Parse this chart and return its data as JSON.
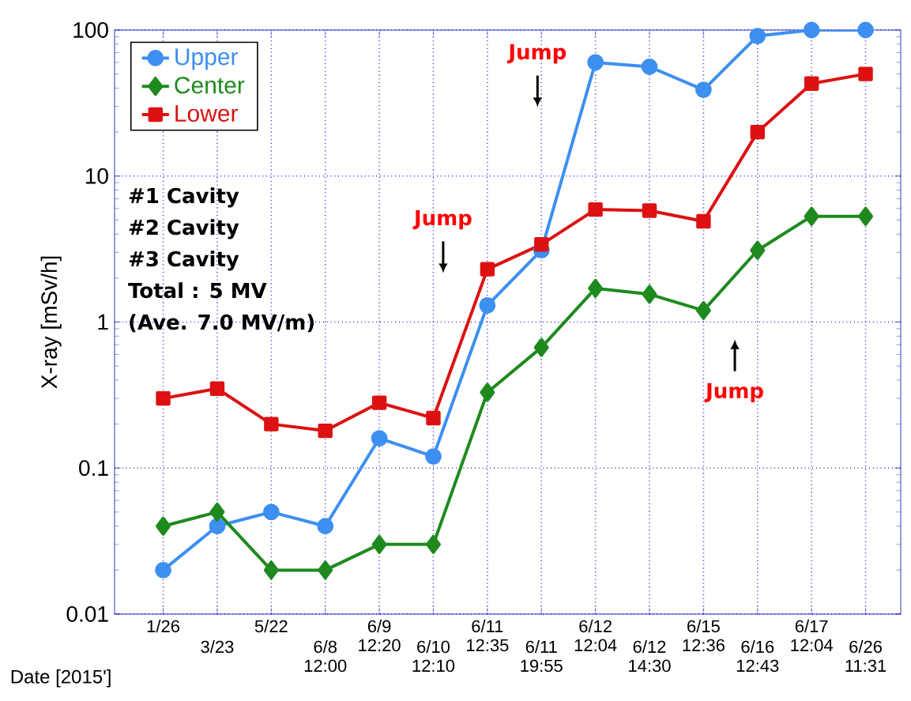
{
  "chart_data": {
    "type": "line",
    "xlabel": "Date [2015']",
    "ylabel": "X-ray  [mSv/h]",
    "categories": [
      "1/26",
      "3/23",
      "5/22",
      "6/8 12:00",
      "6/9 12:20",
      "6/10 12:10",
      "6/11 12:35",
      "6/11 19:55",
      "6/12 12:04",
      "6/12 14:30",
      "6/15 12:36",
      "6/16 12:43",
      "6/17 12:04",
      "6/26 11:31"
    ],
    "series": [
      {
        "name": "Upper",
        "color": "#3d8ff0",
        "marker": "circle",
        "values": [
          0.02,
          0.04,
          0.05,
          0.04,
          0.16,
          0.12,
          1.3,
          3.1,
          60,
          56,
          39,
          91,
          100,
          100
        ]
      },
      {
        "name": "Center",
        "color": "#1e8a1e",
        "marker": "diamond",
        "values": [
          0.04,
          0.05,
          0.02,
          0.02,
          0.03,
          0.03,
          0.33,
          0.67,
          1.7,
          1.55,
          1.2,
          3.1,
          5.3,
          5.3
        ]
      },
      {
        "name": "Lower",
        "color": "#dd1111",
        "marker": "square",
        "values": [
          0.3,
          0.35,
          0.2,
          0.18,
          0.28,
          0.22,
          2.3,
          3.4,
          5.9,
          5.8,
          4.9,
          20,
          43,
          50
        ]
      }
    ],
    "ylim": [
      0.01,
      100
    ],
    "yticks": [
      0.01,
      0.1,
      1,
      10,
      100
    ],
    "log": "y",
    "grid": true,
    "legend": "top left",
    "annotations": [
      "#1 Cavity",
      "#2 Cavity",
      "#3 Cavity",
      "Total : 5 MV",
      "(Ave. 7.0 MV/m)",
      "Jump",
      "Jump",
      "Jump"
    ]
  }
}
